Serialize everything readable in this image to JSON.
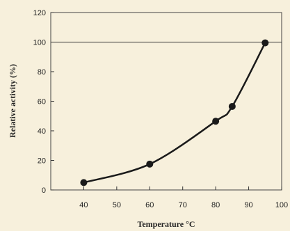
{
  "chart_data": {
    "type": "line",
    "title": "",
    "xlabel": "Temperature °C",
    "ylabel": "Relative activity (%)",
    "xlim": [
      30,
      100
    ],
    "ylim": [
      0,
      120
    ],
    "xticks": [
      40,
      50,
      60,
      70,
      80,
      90,
      100
    ],
    "yticks": [
      0,
      20,
      40,
      60,
      80,
      100,
      120
    ],
    "grid": false,
    "reference_line_y": 100,
    "series": [
      {
        "x": [
          40,
          60,
          80,
          85,
          95
        ],
        "values": [
          5,
          17.5,
          46.5,
          56.5,
          99.5
        ]
      }
    ],
    "colors": {
      "line": "#1a1a1a",
      "marker": "#1a1a1a",
      "axis": "#333333",
      "background": "#f7f0dc"
    }
  }
}
